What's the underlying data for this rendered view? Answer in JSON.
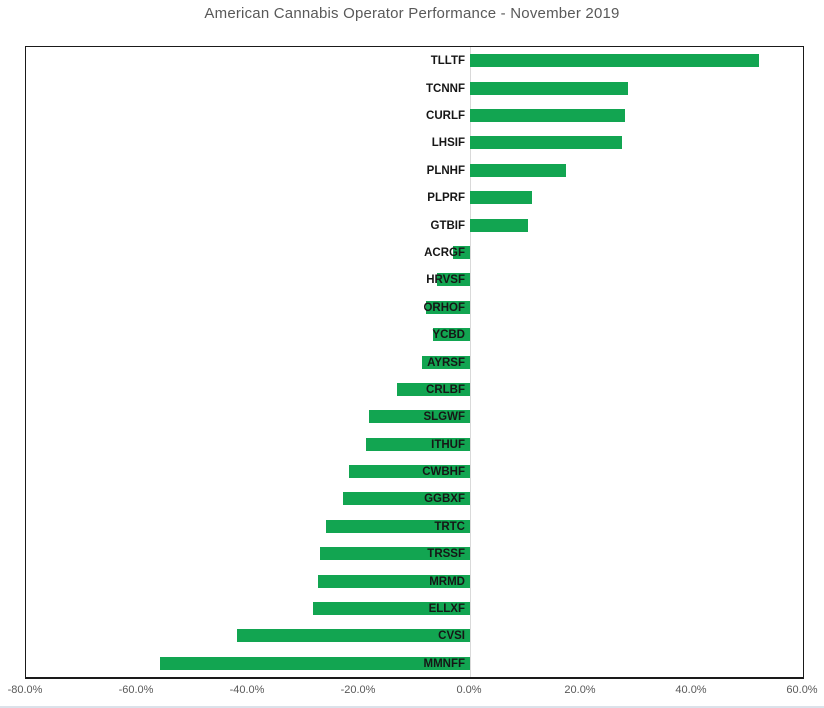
{
  "chart_data": {
    "type": "bar",
    "orientation": "horizontal",
    "title": "American Cannabis Operator Performance - November 2019",
    "categories": [
      "TLLTF",
      "TCNNF",
      "CURLF",
      "LHSIF",
      "PLNHF",
      "PLPRF",
      "GTBIF",
      "ACRGF",
      "HRVSF",
      "ORHOF",
      "YCBD",
      "AYRSF",
      "CRLBF",
      "SLGWF",
      "ITHUF",
      "CWBHF",
      "GGBXF",
      "TRTC",
      "TRSSF",
      "MRMD",
      "ELLXF",
      "CVSI",
      "MMNFF"
    ],
    "values": [
      52.0,
      28.5,
      27.9,
      27.4,
      17.3,
      11.1,
      10.5,
      -3.1,
      -5.9,
      -7.9,
      -6.7,
      -8.7,
      -13.1,
      -18.2,
      -18.7,
      -21.8,
      -22.8,
      -26.0,
      -27.0,
      -27.4,
      -28.3,
      -41.9,
      -55.9
    ],
    "value_unit": "percent",
    "xlim": [
      -80,
      60
    ],
    "x_tick_values": [
      -80,
      -60,
      -40,
      -20,
      0,
      20,
      40,
      60
    ],
    "x_tick_labels": [
      "-80.0%",
      "-60.0%",
      "-40.0%",
      "-20.0%",
      "0.0%",
      "20.0%",
      "40.0%",
      "60.0%"
    ],
    "grid": false,
    "legend": false,
    "colors": {
      "bar": "#12A551",
      "plot_border": "#1a1a1a",
      "zero_line": "#d9d9d9",
      "category_label": "#161616",
      "tick_label": "#595959",
      "title": "#595959"
    }
  }
}
